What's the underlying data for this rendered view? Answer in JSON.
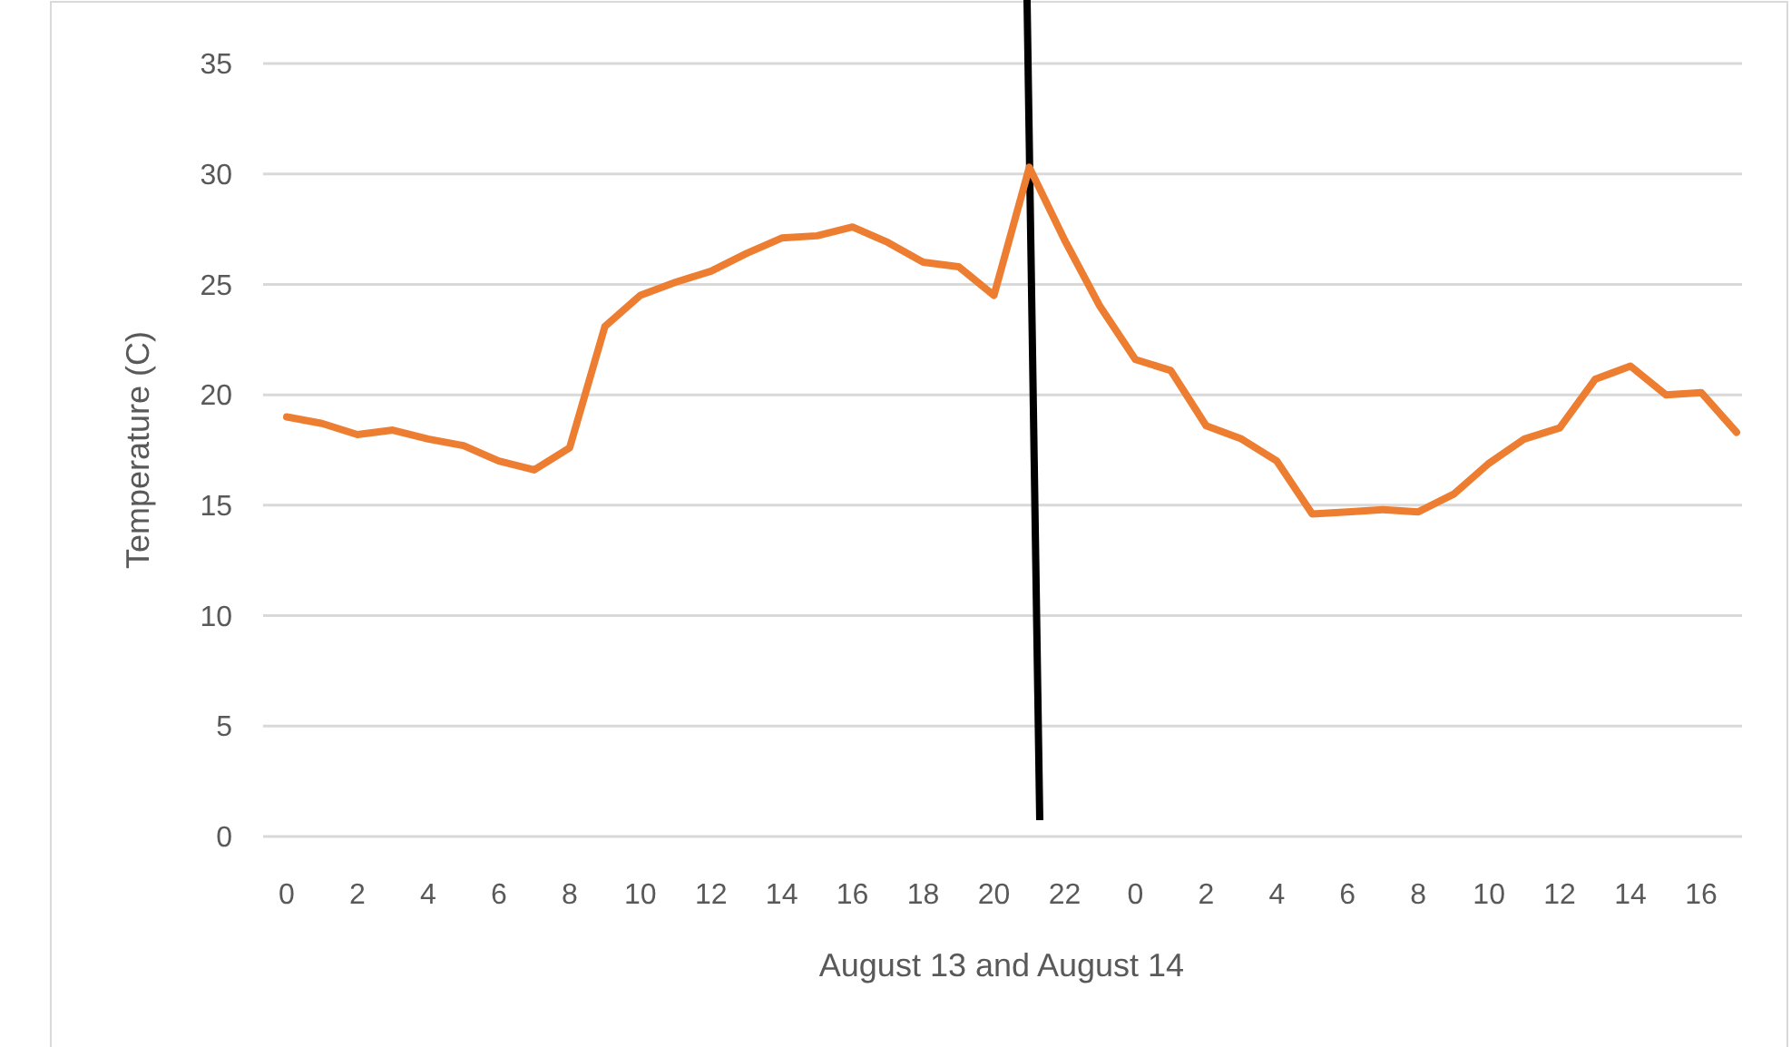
{
  "chart_data": {
    "type": "line",
    "xlabel": "August 13 and August 14",
    "ylabel": "Temperature (C)",
    "categories": [
      "0",
      null,
      "2",
      null,
      "4",
      null,
      "6",
      null,
      "8",
      null,
      "10",
      null,
      "12",
      null,
      "14",
      null,
      "16",
      null,
      "18",
      null,
      "20",
      null,
      "22",
      null,
      "0",
      null,
      "2",
      null,
      "4",
      null,
      "6",
      null,
      "8",
      null,
      "10",
      null,
      "12",
      null,
      "14",
      null,
      "16",
      null
    ],
    "series": [
      {
        "color": "#ed7d31",
        "values": [
          19.0,
          18.7,
          18.2,
          18.4,
          18.0,
          17.7,
          17.0,
          16.6,
          17.6,
          23.1,
          24.5,
          25.1,
          25.6,
          26.4,
          27.1,
          27.2,
          27.6,
          26.9,
          26.0,
          25.8,
          24.5,
          30.3,
          27.0,
          24.0,
          21.6,
          21.1,
          18.6,
          18.0,
          17.0,
          14.6,
          14.7,
          14.8,
          14.7,
          15.5,
          16.9,
          18.0,
          18.5,
          20.7,
          21.3,
          20.0,
          20.1,
          18.3
        ]
      }
    ],
    "ylim": [
      0,
      35
    ],
    "yticks": [
      0,
      5,
      10,
      15,
      20,
      25,
      30,
      35
    ],
    "grid": "y",
    "marker": "none",
    "line_style": "solid"
  }
}
